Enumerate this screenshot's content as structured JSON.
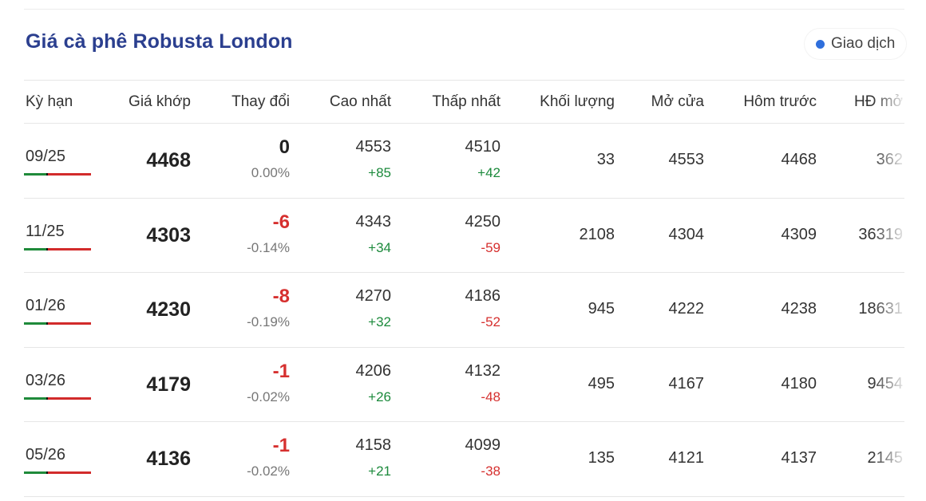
{
  "header": {
    "title": "Giá cà phê Robusta London",
    "badge_label": "Giao dịch",
    "badge_dot_color": "#2f6fdc"
  },
  "colors": {
    "title": "#2b3f8f",
    "negative": "#d6302f",
    "positive": "#1c8a3c"
  },
  "table": {
    "columns": [
      "Kỳ hạn",
      "Giá khớp",
      "Thay đổi",
      "Cao nhất",
      "Thấp nhất",
      "Khối lượng",
      "Mở cửa",
      "Hôm trước",
      "HĐ mở"
    ],
    "rows": [
      {
        "term": "09/25",
        "price": "4468",
        "change": "0",
        "change_pct": "0.00%",
        "high": "4553",
        "high_diff": "+85",
        "low": "4510",
        "low_diff": "+42",
        "volume": "33",
        "open": "4553",
        "prev": "4468",
        "oi": "362"
      },
      {
        "term": "11/25",
        "price": "4303",
        "change": "-6",
        "change_pct": "-0.14%",
        "high": "4343",
        "high_diff": "+34",
        "low": "4250",
        "low_diff": "-59",
        "volume": "2108",
        "open": "4304",
        "prev": "4309",
        "oi": "36319"
      },
      {
        "term": "01/26",
        "price": "4230",
        "change": "-8",
        "change_pct": "-0.19%",
        "high": "4270",
        "high_diff": "+32",
        "low": "4186",
        "low_diff": "-52",
        "volume": "945",
        "open": "4222",
        "prev": "4238",
        "oi": "18631"
      },
      {
        "term": "03/26",
        "price": "4179",
        "change": "-1",
        "change_pct": "-0.02%",
        "high": "4206",
        "high_diff": "+26",
        "low": "4132",
        "low_diff": "-48",
        "volume": "495",
        "open": "4167",
        "prev": "4180",
        "oi": "9454"
      },
      {
        "term": "05/26",
        "price": "4136",
        "change": "-1",
        "change_pct": "-0.02%",
        "high": "4158",
        "high_diff": "+21",
        "low": "4099",
        "low_diff": "-38",
        "volume": "135",
        "open": "4121",
        "prev": "4137",
        "oi": "2145"
      }
    ]
  }
}
